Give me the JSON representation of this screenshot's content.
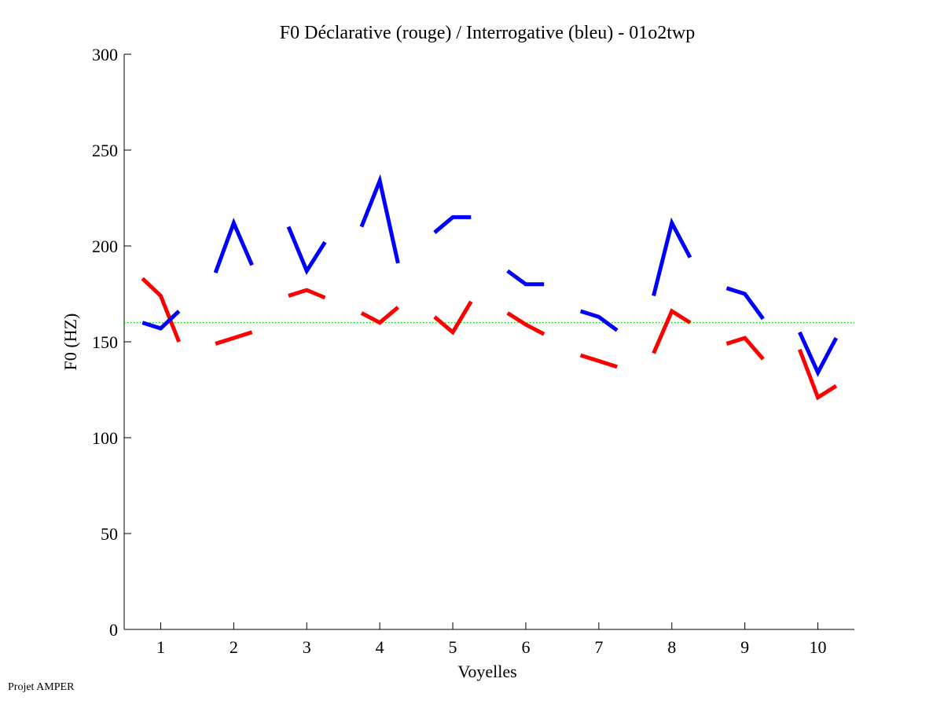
{
  "chart_data": {
    "type": "line",
    "title": "F0 Déclarative (rouge) / Interrogative (bleu) - 01o2twp",
    "xlabel": "Voyelles",
    "ylabel": "F0 (HZ)",
    "xlim": [
      0.5,
      10.5
    ],
    "ylim": [
      0,
      300
    ],
    "xticks": [
      "1",
      "2",
      "3",
      "4",
      "5",
      "6",
      "7",
      "8",
      "9",
      "10"
    ],
    "yticks": [
      "0",
      "50",
      "100",
      "150",
      "200",
      "250",
      "300"
    ],
    "reference_line": {
      "y": 160,
      "color": "#00cc00",
      "style": "dotted"
    },
    "point_offsets": [
      -0.25,
      0,
      0.25
    ],
    "series": [
      {
        "name": "Déclarative",
        "color": "#ff0000",
        "segments": [
          [
            183,
            174,
            150
          ],
          [
            149,
            152,
            155
          ],
          [
            174,
            177,
            173
          ],
          [
            165,
            160,
            168
          ],
          [
            163,
            155,
            171
          ],
          [
            165,
            159,
            154
          ],
          [
            143,
            140,
            137
          ],
          [
            144,
            166,
            160
          ],
          [
            149,
            152,
            141
          ],
          [
            146,
            121,
            127
          ]
        ]
      },
      {
        "name": "Interrogative",
        "color": "#0000ff",
        "segments": [
          [
            160,
            157,
            166
          ],
          [
            186,
            212,
            190
          ],
          [
            210,
            187,
            202
          ],
          [
            210,
            234,
            191
          ],
          [
            207,
            215,
            215
          ],
          [
            187,
            180,
            180
          ],
          [
            166,
            163,
            156
          ],
          [
            174,
            212,
            194
          ],
          [
            178,
            175,
            162
          ],
          [
            155,
            134,
            152
          ]
        ]
      }
    ]
  },
  "footer": "Projet AMPER"
}
